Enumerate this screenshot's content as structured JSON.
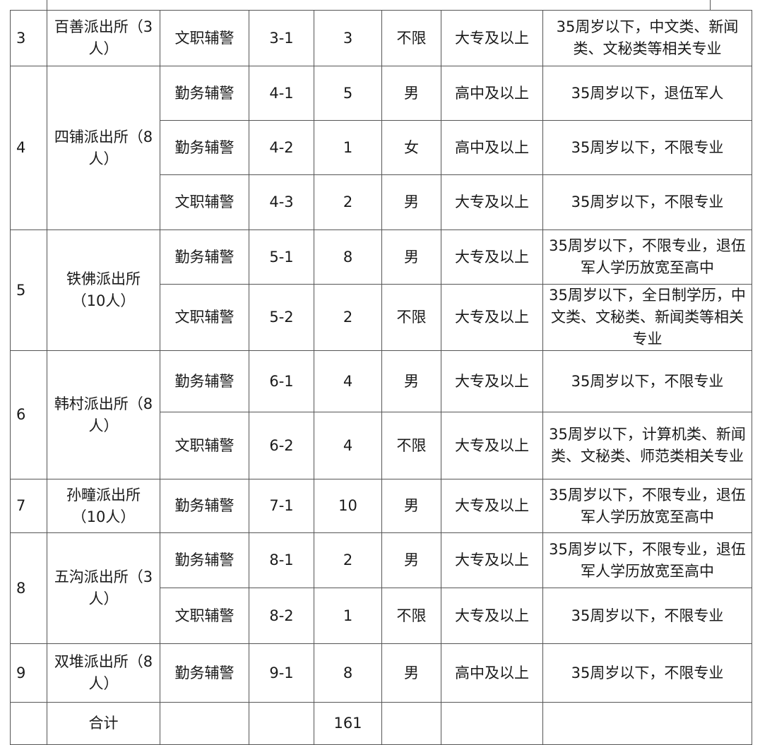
{
  "stations": [
    {
      "no": "3",
      "name": "百善派出所（3人）",
      "posts": [
        {
          "type": "文职辅警",
          "code": "3-1",
          "count": "3",
          "gender": "不限",
          "edu": "大专及以上",
          "req": "35周岁以下，中文类、新闻类、文秘类等相关专业"
        }
      ]
    },
    {
      "no": "4",
      "name": "四铺派出所（8人）",
      "posts": [
        {
          "type": "勤务辅警",
          "code": "4-1",
          "count": "5",
          "gender": "男",
          "edu": "高中及以上",
          "req": "35周岁以下，退伍军人"
        },
        {
          "type": "勤务辅警",
          "code": "4-2",
          "count": "1",
          "gender": "女",
          "edu": "高中及以上",
          "req": "35周岁以下，不限专业"
        },
        {
          "type": "文职辅警",
          "code": "4-3",
          "count": "2",
          "gender": "男",
          "edu": "大专及以上",
          "req": "35周岁以下，不限专业"
        }
      ]
    },
    {
      "no": "5",
      "name": "铁佛派出所（10人）",
      "posts": [
        {
          "type": "勤务辅警",
          "code": "5-1",
          "count": "8",
          "gender": "男",
          "edu": "大专及以上",
          "req": "35周岁以下，不限专业，退伍军人学历放宽至高中"
        },
        {
          "type": "文职辅警",
          "code": "5-2",
          "count": "2",
          "gender": "不限",
          "edu": "大专及以上",
          "req": "35周岁以下，全日制学历，中文类、文秘类、新闻类等相关专业"
        }
      ]
    },
    {
      "no": "6",
      "name": "韩村派出所（8人）",
      "posts": [
        {
          "type": "勤务辅警",
          "code": "6-1",
          "count": "4",
          "gender": "男",
          "edu": "大专及以上",
          "req": "35周岁以下，不限专业"
        },
        {
          "type": "文职辅警",
          "code": "6-2",
          "count": "4",
          "gender": "不限",
          "edu": "大专及以上",
          "req": "35周岁以下，计算机类、新闻类、文秘类、师范类相关专业"
        }
      ]
    },
    {
      "no": "7",
      "name": "孙疃派出所（10人）",
      "posts": [
        {
          "type": "勤务辅警",
          "code": "7-1",
          "count": "10",
          "gender": "男",
          "edu": "大专及以上",
          "req": "35周岁以下，不限专业，退伍军人学历放宽至高中"
        }
      ]
    },
    {
      "no": "8",
      "name": "五沟派出所（3人）",
      "posts": [
        {
          "type": "勤务辅警",
          "code": "8-1",
          "count": "2",
          "gender": "男",
          "edu": "大专及以上",
          "req": "35周岁以下，不限专业，退伍军人学历放宽至高中"
        },
        {
          "type": "文职辅警",
          "code": "8-2",
          "count": "1",
          "gender": "不限",
          "edu": "大专及以上",
          "req": "35周岁以下，不限专业"
        }
      ]
    },
    {
      "no": "9",
      "name": "双堆派出所（8人）",
      "posts": [
        {
          "type": "勤务辅警",
          "code": "9-1",
          "count": "8",
          "gender": "男",
          "edu": "高中及以上",
          "req": "35周岁以下，不限专业"
        }
      ]
    }
  ],
  "total": {
    "label": "合计",
    "count": "161"
  }
}
